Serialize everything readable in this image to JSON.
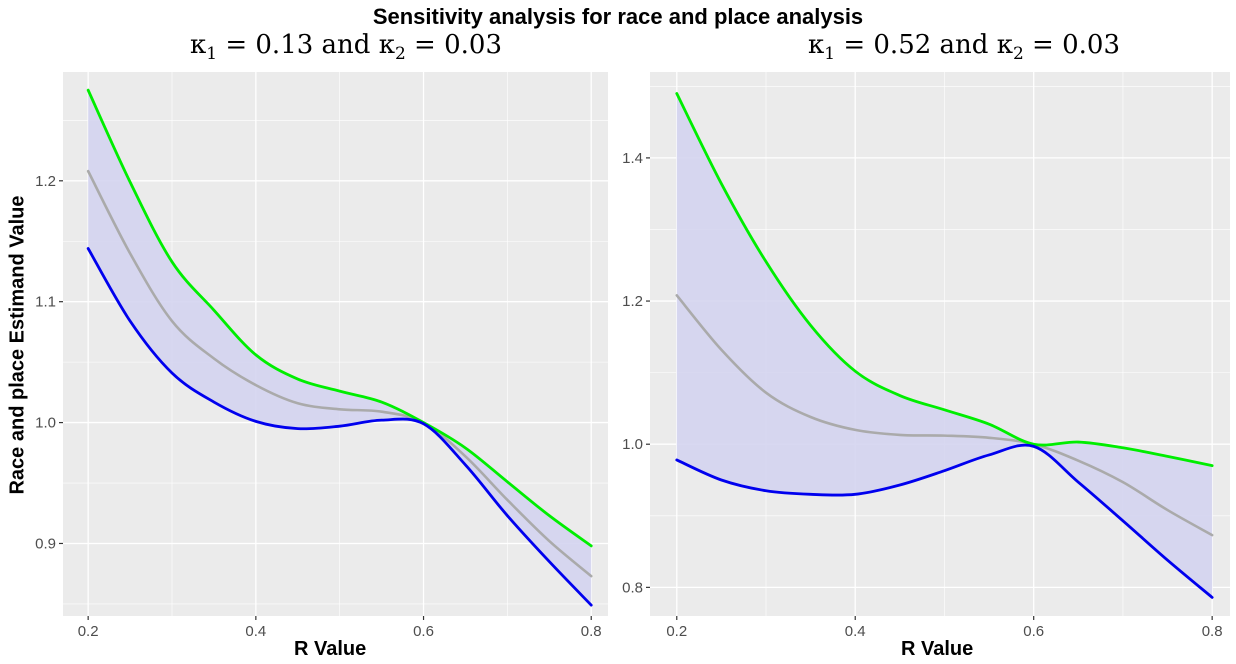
{
  "figure": {
    "title": "Sensitivity analysis for race and place analysis",
    "ylabel": "Race and place Estimand Value",
    "colors": {
      "upper": "#00ee00",
      "lower": "#0000ee",
      "middle": "#aaaaaa",
      "band": "#d4d4f0",
      "panel_bg": "#ebebeb",
      "grid": "#ffffff"
    }
  },
  "chart_data": [
    {
      "type": "line",
      "title": "κ1 = 0.13 and κ2 = 0.03",
      "title_parts": {
        "k1_sym": "κ",
        "k1_sub": "1",
        "k1_rest": " = 0.13 and ",
        "k2_sym": "κ",
        "k2_sub": "2",
        "k2_rest": " = 0.03"
      },
      "xlabel": "R Value",
      "ylabel": "Race and place Estimand Value",
      "xlim": [
        0.17,
        0.82
      ],
      "ylim": [
        0.84,
        1.29
      ],
      "xticks": [
        0.2,
        0.4,
        0.6,
        0.8
      ],
      "xtick_labels": [
        "0.2",
        "0.4",
        "0.6",
        "0.8"
      ],
      "yticks": [
        0.9,
        1.0,
        1.1,
        1.2
      ],
      "ytick_labels": [
        "0.9",
        "1.0",
        "1.1",
        "1.2"
      ],
      "grid": true,
      "band": "shaded region between lower and upper",
      "x": [
        0.2,
        0.25,
        0.3,
        0.35,
        0.4,
        0.45,
        0.5,
        0.55,
        0.6,
        0.65,
        0.7,
        0.75,
        0.8
      ],
      "series": [
        {
          "role": "upper",
          "color": "#00ee00",
          "values": [
            1.275,
            1.199,
            1.133,
            1.093,
            1.056,
            1.036,
            1.026,
            1.017,
            1.0,
            0.979,
            0.951,
            0.923,
            0.898
          ]
        },
        {
          "role": "middle",
          "color": "#aaaaaa",
          "values": [
            1.208,
            1.14,
            1.084,
            1.053,
            1.031,
            1.016,
            1.011,
            1.009,
            1.0,
            0.972,
            0.936,
            0.902,
            0.873
          ]
        },
        {
          "role": "lower",
          "color": "#0000ee",
          "values": [
            1.144,
            1.084,
            1.041,
            1.017,
            1.001,
            0.995,
            0.997,
            1.002,
            0.999,
            0.965,
            0.923,
            0.885,
            0.849
          ]
        }
      ]
    },
    {
      "type": "line",
      "title": "κ1 = 0.52 and κ2 = 0.03",
      "title_parts": {
        "k1_sym": "κ",
        "k1_sub": "1",
        "k1_rest": " = 0.52 and ",
        "k2_sym": "κ",
        "k2_sub": "2",
        "k2_rest": " = 0.03"
      },
      "xlabel": "R Value",
      "xlim": [
        0.17,
        0.82
      ],
      "ylim": [
        0.76,
        1.52
      ],
      "xticks": [
        0.2,
        0.4,
        0.6,
        0.8
      ],
      "xtick_labels": [
        "0.2",
        "0.4",
        "0.6",
        "0.8"
      ],
      "yticks": [
        0.8,
        1.0,
        1.2,
        1.4
      ],
      "ytick_labels": [
        "0.8",
        "1.0",
        "1.2",
        "1.4"
      ],
      "grid": true,
      "band": "shaded region between lower and upper",
      "x": [
        0.2,
        0.25,
        0.3,
        0.35,
        0.4,
        0.45,
        0.5,
        0.55,
        0.6,
        0.65,
        0.7,
        0.75,
        0.8
      ],
      "series": [
        {
          "role": "upper",
          "color": "#00ee00",
          "values": [
            1.49,
            1.364,
            1.255,
            1.166,
            1.102,
            1.068,
            1.048,
            1.028,
            1.0,
            1.003,
            0.995,
            0.983,
            0.97
          ]
        },
        {
          "role": "middle",
          "color": "#aaaaaa",
          "values": [
            1.208,
            1.132,
            1.072,
            1.038,
            1.02,
            1.013,
            1.012,
            1.009,
            1.0,
            0.977,
            0.947,
            0.908,
            0.873
          ]
        },
        {
          "role": "lower",
          "color": "#0000ee",
          "values": [
            0.978,
            0.95,
            0.935,
            0.93,
            0.93,
            0.943,
            0.963,
            0.985,
            0.997,
            0.947,
            0.893,
            0.838,
            0.786
          ]
        }
      ]
    }
  ]
}
